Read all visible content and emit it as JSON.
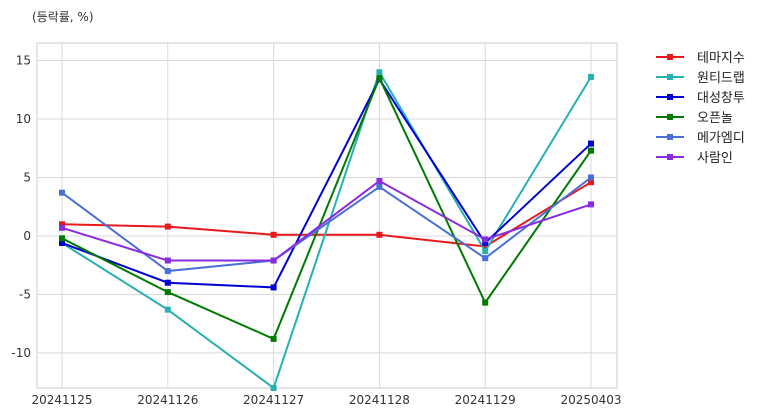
{
  "unit_label": "(등락률, %)",
  "chart_data": {
    "type": "line",
    "title": "",
    "xlabel": "",
    "ylabel": "",
    "categories": [
      "20241125",
      "20241126",
      "20241127",
      "20241128",
      "20241129",
      "20250403"
    ],
    "ylim": [
      -13,
      16.5
    ],
    "yticks": [
      15,
      10,
      5,
      0,
      -5,
      -10
    ],
    "ytick_labels": [
      "15",
      "10",
      "5",
      "0",
      "-5",
      "-10"
    ],
    "grid": true,
    "legend_position": "outside-right",
    "series": [
      {
        "name": "테마지수",
        "color": "#e8191c",
        "values": [
          1.0,
          0.8,
          0.1,
          0.1,
          -0.9,
          4.6
        ]
      },
      {
        "name": "원티드랩",
        "color": "#26b0b0",
        "values": [
          -0.6,
          -6.3,
          -13.0,
          14.0,
          -1.3,
          13.6
        ]
      },
      {
        "name": "대성창투",
        "color": "#0000d6",
        "values": [
          -0.6,
          -4.0,
          -4.4,
          13.4,
          -0.6,
          7.9
        ]
      },
      {
        "name": "오픈놀",
        "color": "#007a00",
        "values": [
          -0.2,
          -4.8,
          -8.8,
          13.5,
          -5.7,
          7.3
        ]
      },
      {
        "name": "메가엠디",
        "color": "#4a6fd8",
        "values": [
          3.7,
          -3.0,
          -2.1,
          4.2,
          -1.9,
          5.0
        ]
      },
      {
        "name": "사람인",
        "color": "#8a2be2",
        "values": [
          0.7,
          -2.1,
          -2.1,
          4.7,
          -0.3,
          2.7
        ]
      }
    ]
  }
}
